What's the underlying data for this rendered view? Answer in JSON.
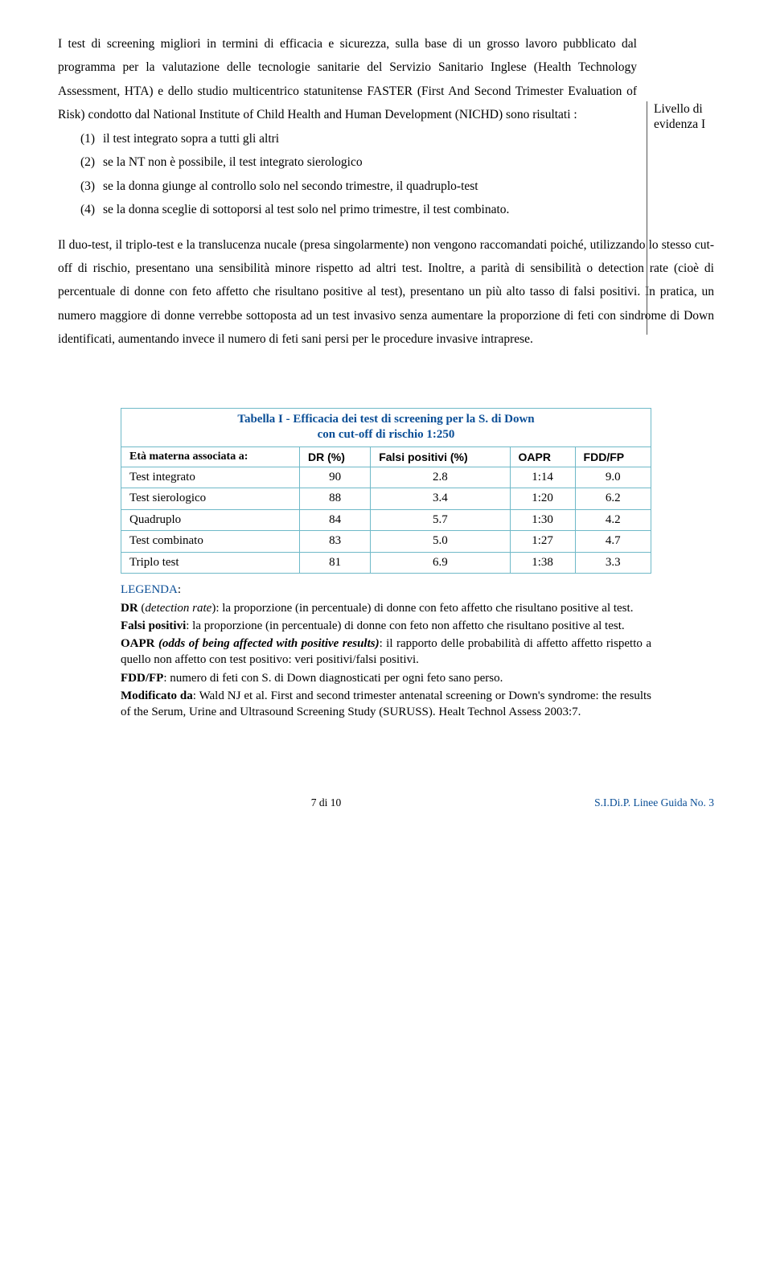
{
  "main": {
    "para1_lead": "I test di screening migliori in termini di efficacia e sicurezza, sulla base di un grosso lavoro pubblicato dal programma per la valutazione delle tecnologie sanitarie del Servizio Sanitario Inglese (Health Technology Assessment, HTA) e dello studio multicentrico statunitense FASTER (First And Second Trimester Evaluation of Risk) condotto dal National Institute of Child Health and Human Development (NICHD) sono risultati :",
    "items": [
      "il test integrato sopra a tutti gli altri",
      "se la NT non è possibile, il test integrato sierologico",
      "se la donna giunge al controllo solo nel secondo trimestre, il quadruplo-test",
      "se la donna sceglie di sottoporsi al test solo nel primo trimestre, il test combinato."
    ],
    "sidebar": "Livello di evidenza I",
    "para2": "Il duo-test, il triplo-test e la translucenza nucale (presa singolarmente) non vengono raccomandati poiché, utilizzando lo stesso cut-off di rischio, presentano una sensibilità minore rispetto ad altri test. Inoltre, a parità di sensibilità o detection rate (cioè di percentuale di donne con feto affetto che risultano positive al test), presentano un più alto tasso di falsi positivi.  In pratica, un numero maggiore di donne verrebbe sottoposta ad un test invasivo senza aumentare la proporzione di feti con sindrome di Down identificati, aumentando invece il numero di feti sani persi per le procedure invasive intraprese."
  },
  "table": {
    "title_l1": "Tabella I  -  Efficacia dei test di screening per la S. di Down",
    "title_l2": "con cut-off di rischio 1:250",
    "colHeaders": [
      "Età materna associata a:",
      "DR (%)",
      "Falsi positivi (%)",
      "OAPR",
      "FDD/FP"
    ],
    "rows": [
      {
        "label": "Test integrato",
        "dr": "90",
        "fp": "2.8",
        "oapr": "1:14",
        "fdd": "9.0"
      },
      {
        "label": "Test sierologico",
        "dr": "88",
        "fp": "3.4",
        "oapr": "1:20",
        "fdd": "6.2"
      },
      {
        "label": "Quadruplo",
        "dr": "84",
        "fp": "5.7",
        "oapr": "1:30",
        "fdd": "4.2"
      },
      {
        "label": "Test combinato",
        "dr": "83",
        "fp": "5.0",
        "oapr": "1:27",
        "fdd": "4.7"
      },
      {
        "label": "Triplo test",
        "dr": "81",
        "fp": "6.9",
        "oapr": "1:38",
        "fdd": "3.3"
      }
    ],
    "border_color": "#6fb9c8",
    "title_color": "#0a4e96"
  },
  "legend": {
    "title": "LEGENDA",
    "dr_b": "DR",
    "dr_i": "detection rate",
    "dr_t": ": la proporzione (in percentuale) di donne con feto affetto che risultano positive al test.",
    "fp_b": "Falsi positivi",
    "fp_t": ": la proporzione (in percentuale) di donne con feto non affetto che risultano positive al test.",
    "oapr_b": "OAPR",
    "oapr_i": "(odds of being affected with positive results)",
    "oapr_t": ": il rapporto delle probabilità di affetto affetto rispetto a quello non affetto con test positivo: veri positivi/falsi positivi.",
    "fdd_b": "FDD/FP",
    "fdd_t": ": numero di feti con S. di Down diagnosticati per ogni feto sano perso.",
    "mod_b": "Modificato da",
    "mod_t": ": Wald NJ et al. First and second trimester antenatal screening or Down's syndrome: the results of the Serum, Urine and Ultrasound Screening Study (SURUSS). Healt Technol Assess 2003:7."
  },
  "footer": {
    "left": "7 di 10",
    "right": "S.I.Di.P.  Linee Guida No. 3"
  }
}
